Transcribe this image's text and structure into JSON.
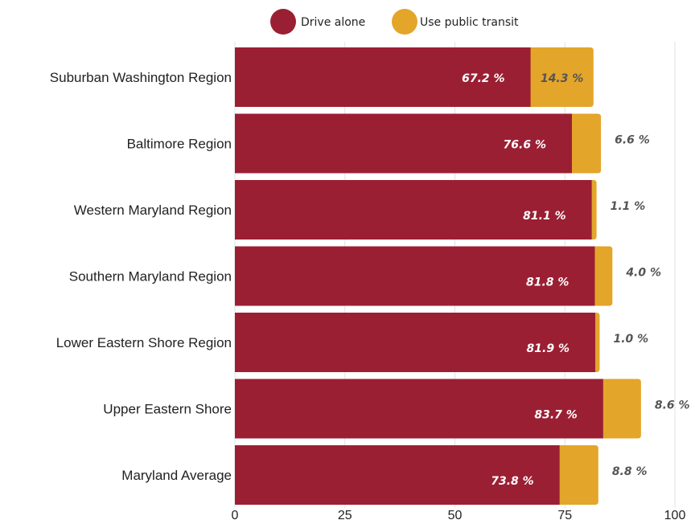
{
  "chart_data": {
    "type": "bar",
    "orientation": "horizontal",
    "stacked": true,
    "title": "",
    "xlabel": "",
    "ylabel": "",
    "categories": [
      "Suburban Washington Region",
      "Baltimore Region",
      "Western Maryland Region",
      "Southern Maryland Region",
      "Lower Eastern Shore Region",
      "Upper Eastern Shore",
      "Maryland Average"
    ],
    "series": [
      {
        "name": "Drive alone",
        "color": "#9b1f33",
        "values": [
          67.2,
          76.6,
          81.1,
          81.8,
          81.9,
          83.7,
          73.8
        ],
        "labels": [
          "67.2 %",
          "76.6 %",
          "81.1 %",
          "81.8 %",
          "81.9 %",
          "83.7 %",
          "73.8 %"
        ]
      },
      {
        "name": "Use public transit",
        "color": "#e3a52a",
        "values": [
          14.3,
          6.6,
          1.1,
          4.0,
          1.0,
          8.6,
          8.8
        ],
        "labels": [
          "14.3 %",
          "6.6 %",
          "1.1 %",
          "4.0 %",
          "1.0 %",
          "8.6 %",
          "8.8 %"
        ]
      }
    ],
    "xlim": [
      0,
      100
    ],
    "xticks": [
      0,
      25,
      50,
      75,
      100
    ],
    "xtick_labels": [
      "0",
      "25",
      "50",
      "75",
      "100"
    ],
    "grid": true,
    "legend_position": "top"
  }
}
